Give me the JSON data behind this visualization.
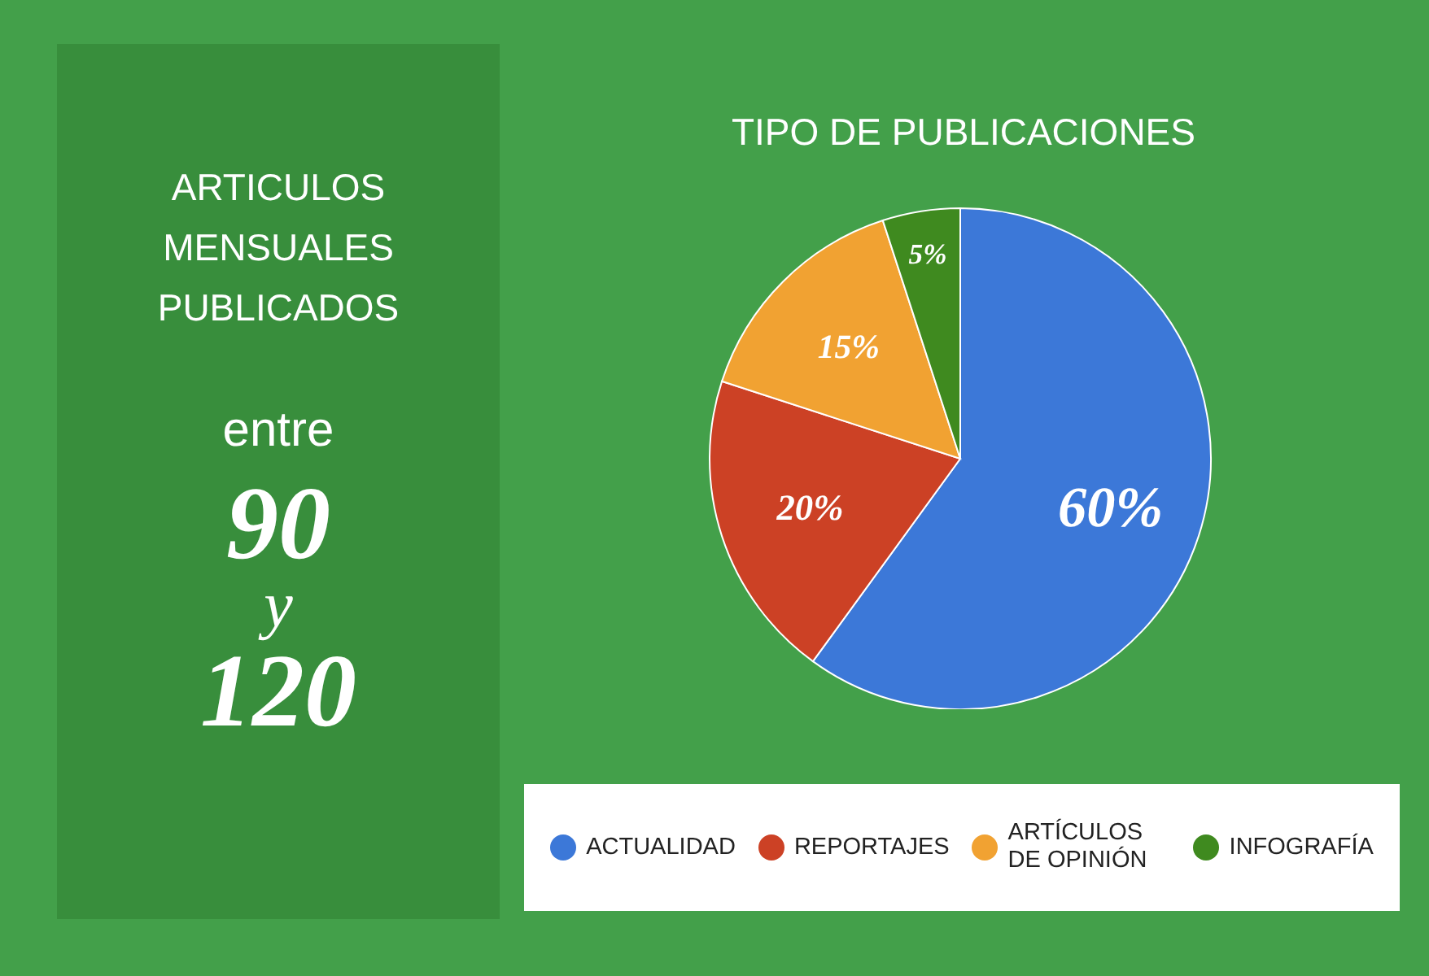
{
  "chart_data": [
    {
      "type": "other",
      "title": "ARTICULOS MENSUALES PUBLICADOS",
      "annotations": [
        "entre",
        "90",
        "y",
        "120"
      ]
    },
    {
      "type": "pie",
      "title": "TIPO DE PUBLICACIONES",
      "categories": [
        "ACTUALIDAD",
        "REPORTAJES",
        "ARTÍCULOS DE OPINIÓN",
        "INFOGRAFÍA"
      ],
      "values": [
        60,
        20,
        15,
        5
      ],
      "colors": [
        "#3c78d8",
        "#cc4125",
        "#f1a232",
        "#3f8a1f"
      ],
      "value_labels": [
        "60%",
        "20%",
        "15%",
        "5%"
      ],
      "legend": "bottom"
    }
  ]
}
